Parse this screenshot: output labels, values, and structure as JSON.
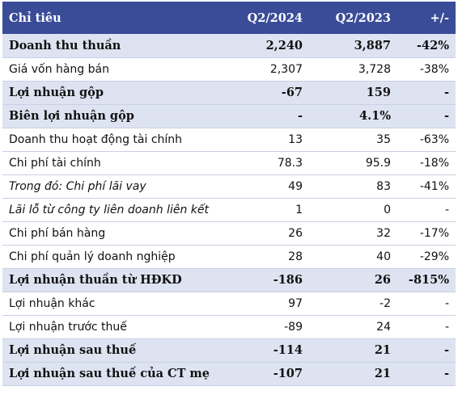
{
  "header": {
    "label": "Chỉ tiêu",
    "col1": "Q2/2024",
    "col2": "Q2/2023",
    "col3": "+/-"
  },
  "rows": [
    {
      "label": "Doanh thu thuần",
      "q2_2024": "2,240",
      "q2_2023": "3,887",
      "change": "-42%",
      "style": "bold"
    },
    {
      "label": "Giá vốn hàng bán",
      "q2_2024": "2,307",
      "q2_2023": "3,728",
      "change": "-38%",
      "style": "normal"
    },
    {
      "label": "Lợi nhuận gộp",
      "q2_2024": "-67",
      "q2_2023": "159",
      "change": "-",
      "style": "bold"
    },
    {
      "label": "Biên lợi nhuận gộp",
      "q2_2024": "-",
      "q2_2023": "4.1%",
      "change": "-",
      "style": "bold"
    },
    {
      "label": "Doanh thu hoạt động tài chính",
      "q2_2024": "13",
      "q2_2023": "35",
      "change": "-63%",
      "style": "normal"
    },
    {
      "label": "Chi phí tài chính",
      "q2_2024": "78.3",
      "q2_2023": "95.9",
      "change": "-18%",
      "style": "normal"
    },
    {
      "label": "Trong đó: Chi phí lãi vay",
      "q2_2024": "49",
      "q2_2023": "83",
      "change": "-41%",
      "style": "italic"
    },
    {
      "label": "Lãi lỗ từ công ty liên doanh liên kết",
      "q2_2024": "1",
      "q2_2023": "0",
      "change": "-",
      "style": "italic"
    },
    {
      "label": "Chi phí bán hàng",
      "q2_2024": "26",
      "q2_2023": "32",
      "change": "-17%",
      "style": "normal"
    },
    {
      "label": "Chi phí quản lý doanh nghiệp",
      "q2_2024": "28",
      "q2_2023": "40",
      "change": "-29%",
      "style": "normal"
    },
    {
      "label": "Lợi nhuận thuần từ HĐKD",
      "q2_2024": "-186",
      "q2_2023": "26",
      "change": "-815%",
      "style": "bold"
    },
    {
      "label": "Lợi nhuận khác",
      "q2_2024": "97",
      "q2_2023": "-2",
      "change": "-",
      "style": "normal"
    },
    {
      "label": "Lợi nhuận trước thuế",
      "q2_2024": "-89",
      "q2_2023": "24",
      "change": "-",
      "style": "normal"
    },
    {
      "label": "Lợi nhuận sau thuế",
      "q2_2024": "-114",
      "q2_2023": "21",
      "change": "-",
      "style": "bold"
    },
    {
      "label": "Lợi nhuận sau thuế của CT mẹ",
      "q2_2024": "-107",
      "q2_2023": "21",
      "change": "-",
      "style": "bold"
    }
  ],
  "colors": {
    "header_bg": "#3a4c98",
    "bold_row_bg": "#dde3f1",
    "row_border": "#c9d0e4"
  }
}
